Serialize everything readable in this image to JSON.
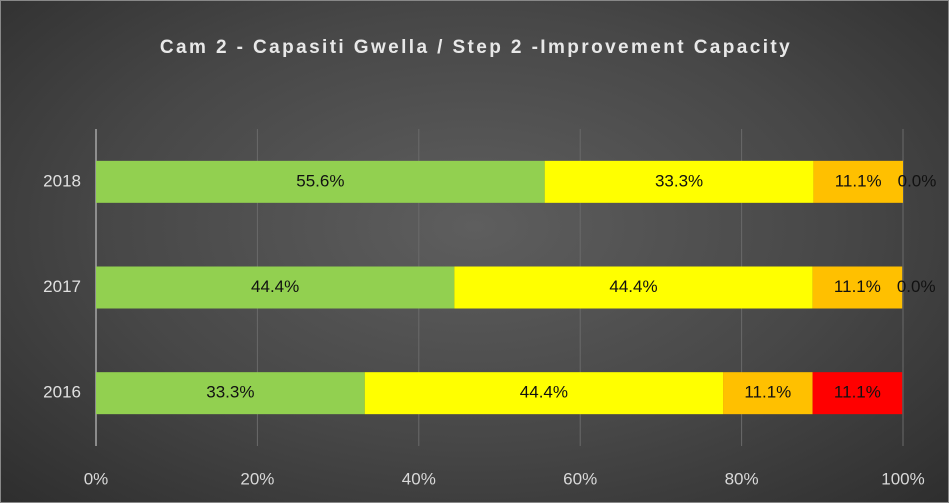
{
  "chart_data": {
    "type": "stacked_bar_horizontal",
    "title": "Cam 2 - Capasiti Gwella / Step 2 -Improvement Capacity",
    "categories": [
      "2016",
      "2017",
      "2018"
    ],
    "series": [
      {
        "color": "#92d050",
        "values": [
          33.3,
          44.4,
          55.6
        ],
        "value_labels": [
          "33.3%",
          "44.4%",
          "55.6%"
        ]
      },
      {
        "color": "#ffff00",
        "values": [
          44.4,
          44.4,
          33.3
        ],
        "value_labels": [
          "44.4%",
          "44.4%",
          "33.3%"
        ]
      },
      {
        "color": "#ffc000",
        "values": [
          11.1,
          11.1,
          11.1
        ],
        "value_labels": [
          "11.1%",
          "11.1%",
          "11.1%"
        ]
      },
      {
        "color": "#ff0000",
        "values": [
          11.1,
          0.0,
          0.0
        ],
        "value_labels": [
          "11.1%",
          "0.0%",
          "0.0%"
        ]
      }
    ],
    "xlim": [
      0,
      100
    ],
    "xticks": [
      {
        "value": 0,
        "label": "0%"
      },
      {
        "value": 20,
        "label": "20%"
      },
      {
        "value": 40,
        "label": "40%"
      },
      {
        "value": 60,
        "label": "60%"
      },
      {
        "value": 80,
        "label": "80%"
      },
      {
        "value": 100,
        "label": "100%"
      }
    ],
    "grid": true
  }
}
